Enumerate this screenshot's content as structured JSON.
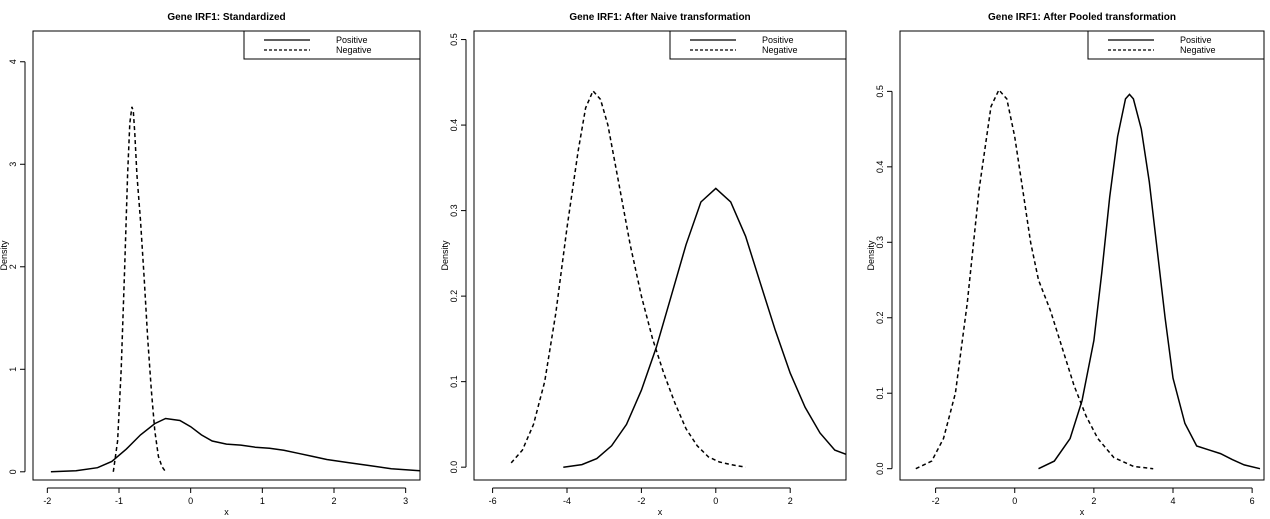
{
  "chart_data": [
    {
      "type": "line",
      "title": "Gene IRF1: Standardized",
      "xlabel": "x",
      "ylabel": "Density",
      "xlim": [
        -2.2,
        3.2
      ],
      "ylim": [
        -0.08,
        4.3
      ],
      "x_ticks": [
        -2,
        -1,
        0,
        1,
        2,
        3
      ],
      "y_ticks": [
        0,
        1,
        2,
        3,
        4
      ],
      "legend_position": "top-right",
      "series": [
        {
          "name": "Positive",
          "style": "solid",
          "x": [
            -1.95,
            -1.6,
            -1.3,
            -1.1,
            -0.9,
            -0.7,
            -0.5,
            -0.35,
            -0.15,
            0.0,
            0.15,
            0.3,
            0.5,
            0.7,
            0.9,
            1.1,
            1.3,
            1.5,
            1.7,
            1.9,
            2.2,
            2.5,
            2.8,
            3.2
          ],
          "y": [
            0.0,
            0.01,
            0.04,
            0.1,
            0.22,
            0.36,
            0.47,
            0.52,
            0.5,
            0.44,
            0.36,
            0.3,
            0.27,
            0.26,
            0.24,
            0.23,
            0.21,
            0.18,
            0.15,
            0.12,
            0.09,
            0.06,
            0.03,
            0.01
          ]
        },
        {
          "name": "Negative",
          "style": "dashed",
          "x": [
            -1.08,
            -1.02,
            -0.97,
            -0.92,
            -0.88,
            -0.85,
            -0.82,
            -0.8,
            -0.78,
            -0.75,
            -0.7,
            -0.65,
            -0.6,
            -0.55,
            -0.5,
            -0.45,
            -0.4,
            -0.35
          ],
          "y": [
            0.0,
            0.3,
            1.0,
            2.0,
            2.9,
            3.4,
            3.56,
            3.52,
            3.3,
            2.9,
            2.45,
            1.9,
            1.3,
            0.8,
            0.4,
            0.15,
            0.05,
            0.0
          ]
        }
      ]
    },
    {
      "type": "line",
      "title": "Gene IRF1: After Naive transformation",
      "xlabel": "x",
      "ylabel": "Density",
      "xlim": [
        -6.5,
        3.5
      ],
      "ylim": [
        -0.015,
        0.51
      ],
      "x_ticks": [
        -6,
        -4,
        -2,
        0,
        2
      ],
      "y_ticks": [
        0.0,
        0.1,
        0.2,
        0.3,
        0.4,
        0.5
      ],
      "legend_position": "top-right",
      "series": [
        {
          "name": "Positive",
          "style": "solid",
          "x": [
            -4.1,
            -3.6,
            -3.2,
            -2.8,
            -2.4,
            -2.0,
            -1.6,
            -1.2,
            -0.8,
            -0.4,
            0.0,
            0.4,
            0.8,
            1.2,
            1.6,
            2.0,
            2.4,
            2.8,
            3.2,
            3.5
          ],
          "y": [
            0.0,
            0.003,
            0.01,
            0.025,
            0.05,
            0.09,
            0.14,
            0.2,
            0.26,
            0.31,
            0.326,
            0.31,
            0.27,
            0.215,
            0.16,
            0.11,
            0.07,
            0.04,
            0.02,
            0.015
          ]
        },
        {
          "name": "Negative",
          "style": "dashed",
          "x": [
            -5.5,
            -5.2,
            -4.9,
            -4.6,
            -4.3,
            -4.0,
            -3.7,
            -3.5,
            -3.3,
            -3.1,
            -2.9,
            -2.6,
            -2.3,
            -2.0,
            -1.7,
            -1.4,
            -1.1,
            -0.8,
            -0.5,
            -0.2,
            0.1,
            0.4,
            0.8
          ],
          "y": [
            0.005,
            0.02,
            0.05,
            0.1,
            0.18,
            0.28,
            0.37,
            0.42,
            0.44,
            0.43,
            0.4,
            0.33,
            0.26,
            0.2,
            0.15,
            0.11,
            0.075,
            0.045,
            0.025,
            0.012,
            0.006,
            0.003,
            0.0
          ]
        }
      ]
    },
    {
      "type": "line",
      "title": "Gene IRF1: After Pooled transformation",
      "xlabel": "x",
      "ylabel": "Density",
      "xlim": [
        -2.9,
        6.3
      ],
      "ylim": [
        -0.015,
        0.58
      ],
      "x_ticks": [
        -2,
        0,
        2,
        4,
        6
      ],
      "y_ticks": [
        0.0,
        0.1,
        0.2,
        0.3,
        0.4,
        0.5
      ],
      "legend_position": "top-right",
      "series": [
        {
          "name": "Positive",
          "style": "solid",
          "x": [
            0.6,
            1.0,
            1.4,
            1.7,
            2.0,
            2.2,
            2.4,
            2.6,
            2.8,
            2.9,
            3.0,
            3.2,
            3.4,
            3.6,
            3.8,
            4.0,
            4.3,
            4.6,
            4.9,
            5.2,
            5.5,
            5.8,
            6.2
          ],
          "y": [
            0.0,
            0.01,
            0.04,
            0.09,
            0.17,
            0.26,
            0.36,
            0.44,
            0.49,
            0.496,
            0.49,
            0.45,
            0.38,
            0.29,
            0.2,
            0.12,
            0.06,
            0.03,
            0.025,
            0.02,
            0.012,
            0.005,
            0.0
          ]
        },
        {
          "name": "Negative",
          "style": "dashed",
          "x": [
            -2.5,
            -2.1,
            -1.8,
            -1.5,
            -1.2,
            -0.9,
            -0.6,
            -0.4,
            -0.2,
            0.0,
            0.2,
            0.4,
            0.6,
            0.9,
            1.2,
            1.5,
            1.8,
            2.1,
            2.5,
            3.0,
            3.5
          ],
          "y": [
            0.0,
            0.01,
            0.04,
            0.1,
            0.22,
            0.37,
            0.48,
            0.502,
            0.49,
            0.44,
            0.37,
            0.3,
            0.25,
            0.21,
            0.16,
            0.11,
            0.07,
            0.04,
            0.015,
            0.003,
            0.0
          ]
        }
      ]
    }
  ]
}
